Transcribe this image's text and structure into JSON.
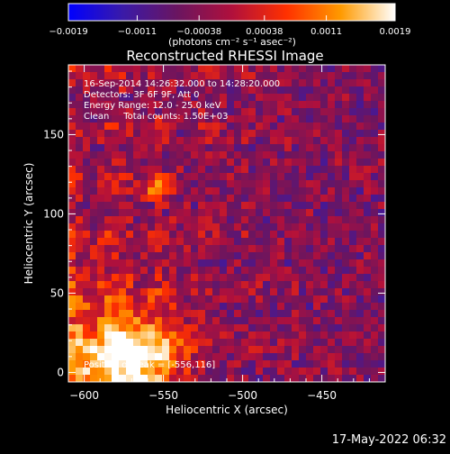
{
  "chart_data": {
    "type": "heatmap",
    "title": "Reconstructed RHESSI Image",
    "xlabel": "Heliocentric X (arcsec)",
    "ylabel": "Heliocentric Y (arcsec)",
    "xlim": [
      -610,
      -410
    ],
    "ylim": [
      -6,
      194
    ],
    "x_ticks": [
      -600,
      -550,
      -500,
      -450
    ],
    "x_tick_labels": [
      "−600",
      "−550",
      "−500",
      "−450"
    ],
    "y_ticks": [
      0,
      50,
      100,
      150
    ],
    "y_tick_labels": [
      "0",
      "50",
      "100",
      "150"
    ],
    "colorbar": {
      "min": -0.0019,
      "max": 0.0019,
      "tick_values": [
        -0.0019,
        -0.0011,
        -0.00038,
        0.00038,
        0.0011,
        0.0019
      ],
      "tick_labels": [
        "−0.0019",
        "−0.0011",
        "−0.00038",
        "0.00038",
        "0.0011",
        "0.0019"
      ],
      "unit_label": "(photons cm⁻² s⁻¹ asec⁻²)",
      "colors": [
        "#0000ff",
        "#3a1aa8",
        "#6a1560",
        "#b0103c",
        "#ff3000",
        "#ff9a00",
        "#ffffff"
      ]
    },
    "annotations": [
      "16-Sep-2014 14:26:32.000 to 14:28:20.000",
      "Detectors: 3F 6F 9F, Att 0",
      "Energy Range: 12.0 - 25.0 keV",
      "Clean     Total counts: 1.50E+03"
    ],
    "peak_label": "Position of Peak = [-556,116]",
    "peak_position": [
      -556,
      116
    ]
  },
  "timestamp": "17-May-2022 06:32"
}
